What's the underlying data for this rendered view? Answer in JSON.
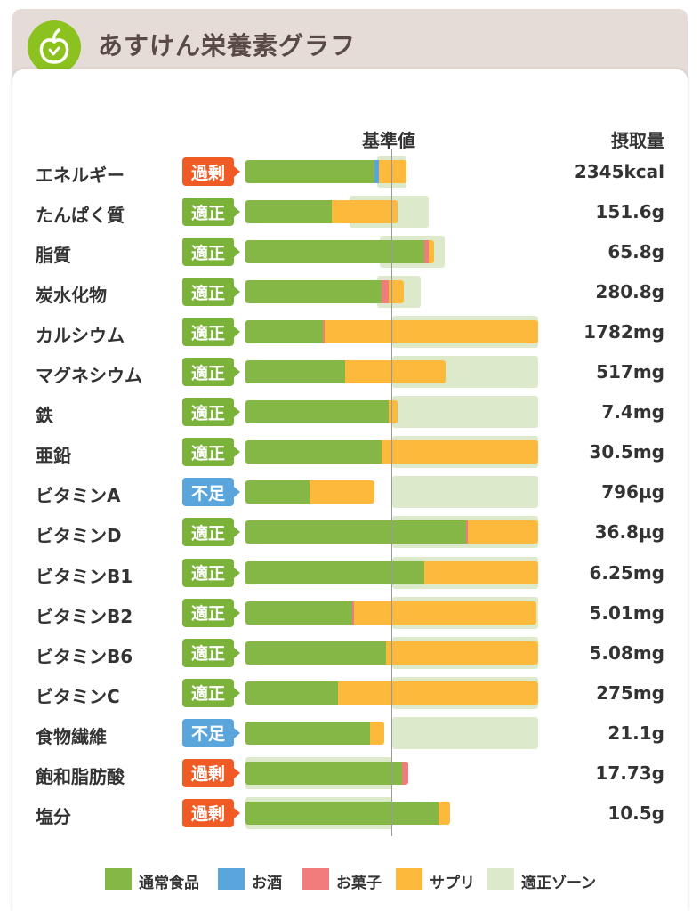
{
  "app": {
    "title": "あすけん栄養素グラフ",
    "logo_icon": "apple-icon",
    "logo_color": "#8cc21f"
  },
  "header": {
    "reference": "基準値",
    "intake": "摂取量"
  },
  "colors": {
    "normal": "#84b745",
    "alcohol": "#5aa5dc",
    "snack": "#f07c7c",
    "supplement": "#fdb93b",
    "zone": "#dce9cb"
  },
  "legend": [
    {
      "key": "normal",
      "label": "通常食品"
    },
    {
      "key": "alcohol",
      "label": "お酒"
    },
    {
      "key": "snack",
      "label": "お菓子"
    },
    {
      "key": "supplement",
      "label": "サプリ"
    },
    {
      "key": "zone",
      "label": "適正ゾーン"
    }
  ],
  "chart_data": {
    "type": "bar",
    "stacked": true,
    "orientation": "horizontal",
    "reference_percent": 100,
    "rows": [
      {
        "name": "エネルギー",
        "status": "過剰",
        "status_type": "over",
        "value": "2345kcal",
        "zone": [
          90,
          110
        ],
        "segments": {
          "normal": 88,
          "alcohol": 3,
          "snack": 0,
          "supplement": 19
        }
      },
      {
        "name": "たんぱく質",
        "status": "適正",
        "status_type": "ok",
        "value": "151.6g",
        "zone": [
          71,
          125
        ],
        "segments": {
          "normal": 59,
          "alcohol": 0,
          "snack": 0,
          "supplement": 45
        }
      },
      {
        "name": "脂質",
        "status": "適正",
        "status_type": "ok",
        "value": "65.8g",
        "zone": [
          92,
          136
        ],
        "segments": {
          "normal": 122,
          "alcohol": 0,
          "snack": 3,
          "supplement": 4
        }
      },
      {
        "name": "炭水化物",
        "status": "適正",
        "status_type": "ok",
        "value": "280.8g",
        "zone": [
          90,
          120
        ],
        "segments": {
          "normal": 93,
          "alcohol": 0,
          "snack": 5,
          "supplement": 10
        }
      },
      {
        "name": "カルシウム",
        "status": "適正",
        "status_type": "ok",
        "value": "1782mg",
        "zone": [
          100,
          200
        ],
        "segments": {
          "normal": 53,
          "alcohol": 0,
          "snack": 1,
          "supplement": 146
        }
      },
      {
        "name": "マグネシウム",
        "status": "適正",
        "status_type": "ok",
        "value": "517mg",
        "zone": [
          100,
          200
        ],
        "segments": {
          "normal": 68,
          "alcohol": 0,
          "snack": 0,
          "supplement": 69
        }
      },
      {
        "name": "鉄",
        "status": "適正",
        "status_type": "ok",
        "value": "7.4mg",
        "zone": [
          100,
          200
        ],
        "segments": {
          "normal": 98,
          "alcohol": 0,
          "snack": 0,
          "supplement": 6
        }
      },
      {
        "name": "亜鉛",
        "status": "適正",
        "status_type": "ok",
        "value": "30.5mg",
        "zone": [
          100,
          200
        ],
        "segments": {
          "normal": 93,
          "alcohol": 0,
          "snack": 0,
          "supplement": 107
        }
      },
      {
        "name": "ビタミンA",
        "status": "不足",
        "status_type": "low",
        "value": "796µg",
        "zone": [
          100,
          200
        ],
        "segments": {
          "normal": 44,
          "alcohol": 0,
          "snack": 0,
          "supplement": 44
        }
      },
      {
        "name": "ビタミンD",
        "status": "適正",
        "status_type": "ok",
        "value": "36.8µg",
        "zone": [
          100,
          200
        ],
        "segments": {
          "normal": 151,
          "alcohol": 0,
          "snack": 1,
          "supplement": 48
        }
      },
      {
        "name": "ビタミンB1",
        "status": "適正",
        "status_type": "ok",
        "value": "6.25mg",
        "zone": [
          100,
          200
        ],
        "segments": {
          "normal": 122,
          "alcohol": 0,
          "snack": 0,
          "supplement": 78
        }
      },
      {
        "name": "ビタミンB2",
        "status": "適正",
        "status_type": "ok",
        "value": "5.01mg",
        "zone": [
          100,
          200
        ],
        "segments": {
          "normal": 73,
          "alcohol": 0,
          "snack": 1,
          "supplement": 125
        }
      },
      {
        "name": "ビタミンB6",
        "status": "適正",
        "status_type": "ok",
        "value": "5.08mg",
        "zone": [
          100,
          200
        ],
        "segments": {
          "normal": 96,
          "alcohol": 0,
          "snack": 0,
          "supplement": 104
        }
      },
      {
        "name": "ビタミンC",
        "status": "適正",
        "status_type": "ok",
        "value": "275mg",
        "zone": [
          100,
          200
        ],
        "segments": {
          "normal": 63,
          "alcohol": 0,
          "snack": 0,
          "supplement": 137
        }
      },
      {
        "name": "食物繊維",
        "status": "不足",
        "status_type": "low",
        "value": "21.1g",
        "zone": [
          100,
          200
        ],
        "segments": {
          "normal": 85,
          "alcohol": 0,
          "snack": 0,
          "supplement": 10
        }
      },
      {
        "name": "飽和脂肪酸",
        "status": "過剰",
        "status_type": "over",
        "value": "17.73g",
        "zone": [
          0,
          100
        ],
        "segments": {
          "normal": 107,
          "alcohol": 0,
          "snack": 4,
          "supplement": 0
        }
      },
      {
        "name": "塩分",
        "status": "過剰",
        "status_type": "over",
        "value": "10.5g",
        "zone": [
          0,
          100
        ],
        "segments": {
          "normal": 132,
          "alcohol": 0,
          "snack": 0,
          "supplement": 8
        }
      }
    ]
  }
}
